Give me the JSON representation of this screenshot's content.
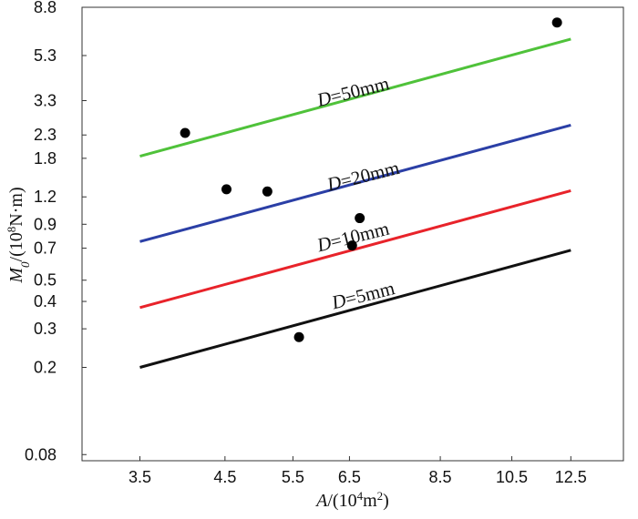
{
  "chart_data": {
    "type": "line",
    "scale": {
      "x": "log",
      "y": "log"
    },
    "xlabel": {
      "var": "A",
      "pre": "/(10",
      "sup": "4",
      "mid": "m",
      "sup2": "2",
      "post": ")"
    },
    "ylabel": {
      "var": "M",
      "sub": "0",
      "pre": "/(10",
      "sup": "8",
      "post": "N·m)"
    },
    "xlim": [
      2.95,
      14.6
    ],
    "ylim": [
      0.075,
      8.8
    ],
    "x_ticks": [
      {
        "value": 3.5,
        "label": "3.5"
      },
      {
        "value": 4.5,
        "label": "4.5"
      },
      {
        "value": 5.5,
        "label": "5.5"
      },
      {
        "value": 6.5,
        "label": "6.5"
      },
      {
        "value": 8.5,
        "label": "8.5"
      },
      {
        "value": 10.5,
        "label": "10.5"
      },
      {
        "value": 12.5,
        "label": "12.5"
      }
    ],
    "y_ticks": [
      {
        "value": 0.08,
        "label": "0.08"
      },
      {
        "value": 0.2,
        "label": "0.2"
      },
      {
        "value": 0.3,
        "label": "0.3"
      },
      {
        "value": 0.4,
        "label": "0.4"
      },
      {
        "value": 0.5,
        "label": "0.5"
      },
      {
        "value": 0.7,
        "label": "0.7"
      },
      {
        "value": 0.9,
        "label": "0.9"
      },
      {
        "value": 1.2,
        "label": "1.2"
      },
      {
        "value": 1.8,
        "label": "1.8"
      },
      {
        "value": 2.3,
        "label": "2.3"
      },
      {
        "value": 3.3,
        "label": "3.3"
      },
      {
        "value": 5.3,
        "label": "5.3"
      },
      {
        "value": 8.8,
        "label": "8.8"
      }
    ],
    "series": [
      {
        "name": "D=50mm",
        "label_var": "D",
        "label_text": "=50mm",
        "color": "#4fc23a",
        "x": [
          3.5,
          12.5
        ],
        "y": [
          1.84,
          6.3
        ],
        "label_at": [
          6.6,
          3.4
        ],
        "label_angle": -14
      },
      {
        "name": "D=20mm",
        "label_var": "D",
        "label_text": "=20mm",
        "color": "#2b3fa6",
        "x": [
          3.5,
          12.5
        ],
        "y": [
          0.75,
          2.55
        ],
        "label_at": [
          6.8,
          1.4
        ],
        "label_angle": -14
      },
      {
        "name": "D=10mm",
        "label_var": "D",
        "label_text": "=10mm",
        "color": "#e8232a",
        "x": [
          3.5,
          12.5
        ],
        "y": [
          0.375,
          1.28
        ],
        "label_at": [
          6.6,
          0.74
        ],
        "label_angle": -14
      },
      {
        "name": "D=5mm",
        "label_var": "D",
        "label_text": "=5mm",
        "color": "#111111",
        "x": [
          3.5,
          12.5
        ],
        "y": [
          0.2,
          0.685
        ],
        "label_at": [
          6.8,
          0.4
        ],
        "label_angle": -14
      }
    ],
    "points": [
      {
        "x": 4.0,
        "y": 2.35
      },
      {
        "x": 4.52,
        "y": 1.3
      },
      {
        "x": 5.1,
        "y": 1.27
      },
      {
        "x": 5.6,
        "y": 0.275
      },
      {
        "x": 6.55,
        "y": 0.72
      },
      {
        "x": 6.7,
        "y": 0.96
      },
      {
        "x": 12.0,
        "y": 7.5
      }
    ]
  }
}
